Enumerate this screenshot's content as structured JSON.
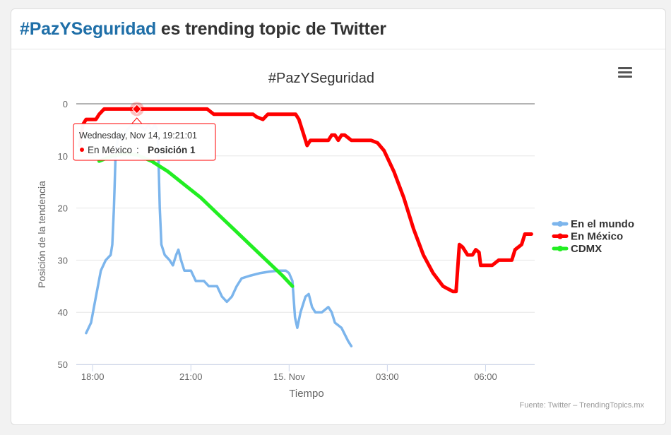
{
  "header": {
    "hashtag": "#PazYSeguridad",
    "title_rest": " es trending topic de Twitter"
  },
  "icons": {
    "menu": "hamburger-menu-icon"
  },
  "colors": {
    "brand": "#1f6fa8",
    "series_mundo": "#7cb5ec",
    "series_mexico": "#ff0000",
    "series_cdmx": "#22ee22"
  },
  "chart_data": {
    "type": "line",
    "title": "#PazYSeguridad",
    "xlabel": "Tiempo",
    "ylabel": "Posición de la tendencia",
    "y_reversed": true,
    "ylim": [
      0,
      50
    ],
    "y_ticks": [
      "0",
      "10",
      "20",
      "30",
      "40",
      "50"
    ],
    "x_ticks": [
      "18:00",
      "21:00",
      "15. Nov",
      "03:00",
      "06:00"
    ],
    "x_unit": "hours after Nov 14 00:00",
    "xlim": [
      17.5,
      31.5
    ],
    "grid": true,
    "legend_position": "right",
    "credits": "Fuente: Twitter – TrendingTopics.mx",
    "tooltip": {
      "date": "Wednesday, Nov 14, 19:21:01",
      "series": "En México",
      "label": "Posición 1",
      "x": 19.35,
      "y": 1
    },
    "series": [
      {
        "name": "En el mundo",
        "color": "#7cb5ec",
        "points": [
          [
            17.8,
            44
          ],
          [
            17.95,
            42
          ],
          [
            18.1,
            37
          ],
          [
            18.25,
            32
          ],
          [
            18.4,
            30
          ],
          [
            18.55,
            29
          ],
          [
            18.6,
            27
          ],
          [
            18.65,
            20
          ],
          [
            18.7,
            10
          ],
          [
            18.8,
            5
          ],
          [
            18.9,
            7
          ],
          [
            19.05,
            5
          ],
          [
            19.2,
            4
          ],
          [
            19.4,
            4
          ],
          [
            19.6,
            5
          ],
          [
            19.7,
            4
          ],
          [
            19.8,
            5
          ],
          [
            19.9,
            4
          ],
          [
            19.97,
            5
          ],
          [
            20.0,
            8
          ],
          [
            20.05,
            20
          ],
          [
            20.1,
            27
          ],
          [
            20.2,
            29
          ],
          [
            20.35,
            30
          ],
          [
            20.45,
            31
          ],
          [
            20.55,
            29
          ],
          [
            20.62,
            28
          ],
          [
            20.7,
            30
          ],
          [
            20.8,
            32
          ],
          [
            21.0,
            32
          ],
          [
            21.15,
            34
          ],
          [
            21.4,
            34
          ],
          [
            21.55,
            35
          ],
          [
            21.8,
            35
          ],
          [
            21.95,
            37
          ],
          [
            22.1,
            38
          ],
          [
            22.25,
            37
          ],
          [
            22.4,
            35
          ],
          [
            22.55,
            33.5
          ],
          [
            22.8,
            33
          ],
          [
            23.1,
            32.5
          ],
          [
            23.4,
            32.2
          ],
          [
            23.7,
            32
          ],
          [
            23.9,
            32
          ],
          [
            24.0,
            32.5
          ],
          [
            24.1,
            34
          ],
          [
            24.18,
            41
          ],
          [
            24.25,
            43
          ],
          [
            24.35,
            40
          ],
          [
            24.5,
            37
          ],
          [
            24.6,
            36.5
          ],
          [
            24.7,
            39
          ],
          [
            24.8,
            40
          ],
          [
            25.0,
            40
          ],
          [
            25.1,
            39.5
          ],
          [
            25.2,
            39
          ],
          [
            25.3,
            40
          ],
          [
            25.4,
            42
          ],
          [
            25.6,
            43
          ],
          [
            25.8,
            45.5
          ],
          [
            25.9,
            46.5
          ]
        ]
      },
      {
        "name": "En México",
        "color": "#ff0000",
        "points": [
          [
            17.6,
            8
          ],
          [
            17.7,
            4
          ],
          [
            17.8,
            3
          ],
          [
            18.1,
            3
          ],
          [
            18.2,
            2
          ],
          [
            18.35,
            1
          ],
          [
            19.0,
            1
          ],
          [
            19.35,
            1
          ],
          [
            20.0,
            1
          ],
          [
            20.5,
            1
          ],
          [
            21.0,
            1
          ],
          [
            21.5,
            1
          ],
          [
            21.7,
            2
          ],
          [
            22.0,
            2
          ],
          [
            22.5,
            2
          ],
          [
            22.9,
            2
          ],
          [
            23.0,
            2.5
          ],
          [
            23.2,
            3
          ],
          [
            23.35,
            2
          ],
          [
            23.5,
            2
          ],
          [
            24.0,
            2
          ],
          [
            24.2,
            2
          ],
          [
            24.3,
            3
          ],
          [
            24.45,
            6
          ],
          [
            24.55,
            8
          ],
          [
            24.65,
            7
          ],
          [
            25.0,
            7
          ],
          [
            25.2,
            7
          ],
          [
            25.3,
            6
          ],
          [
            25.4,
            6
          ],
          [
            25.5,
            7
          ],
          [
            25.6,
            6
          ],
          [
            25.7,
            6
          ],
          [
            25.8,
            6.5
          ],
          [
            25.9,
            7
          ],
          [
            26.2,
            7
          ],
          [
            26.5,
            7
          ],
          [
            26.7,
            7.5
          ],
          [
            26.9,
            9
          ],
          [
            27.2,
            13
          ],
          [
            27.5,
            18
          ],
          [
            27.8,
            24
          ],
          [
            28.1,
            29
          ],
          [
            28.4,
            32.5
          ],
          [
            28.7,
            35
          ],
          [
            29.0,
            36
          ],
          [
            29.1,
            36
          ],
          [
            29.2,
            27
          ],
          [
            29.3,
            27.5
          ],
          [
            29.45,
            29
          ],
          [
            29.6,
            29
          ],
          [
            29.7,
            28
          ],
          [
            29.8,
            28.5
          ],
          [
            29.85,
            31
          ],
          [
            30.0,
            31
          ],
          [
            30.2,
            31
          ],
          [
            30.4,
            30
          ],
          [
            30.6,
            30
          ],
          [
            30.8,
            30
          ],
          [
            30.9,
            28
          ],
          [
            31.0,
            27.5
          ],
          [
            31.1,
            27
          ],
          [
            31.2,
            25
          ],
          [
            31.4,
            25
          ]
        ]
      },
      {
        "name": "CDMX",
        "color": "#22ee22",
        "points": [
          [
            18.2,
            11
          ],
          [
            18.6,
            10
          ],
          [
            19.0,
            9.5
          ],
          [
            19.35,
            9.8
          ],
          [
            19.8,
            11
          ],
          [
            20.3,
            13
          ],
          [
            20.8,
            15.5
          ],
          [
            21.3,
            18
          ],
          [
            21.8,
            21
          ],
          [
            22.3,
            24
          ],
          [
            22.8,
            27
          ],
          [
            23.3,
            30
          ],
          [
            23.8,
            33
          ],
          [
            24.1,
            35
          ]
        ]
      }
    ]
  }
}
